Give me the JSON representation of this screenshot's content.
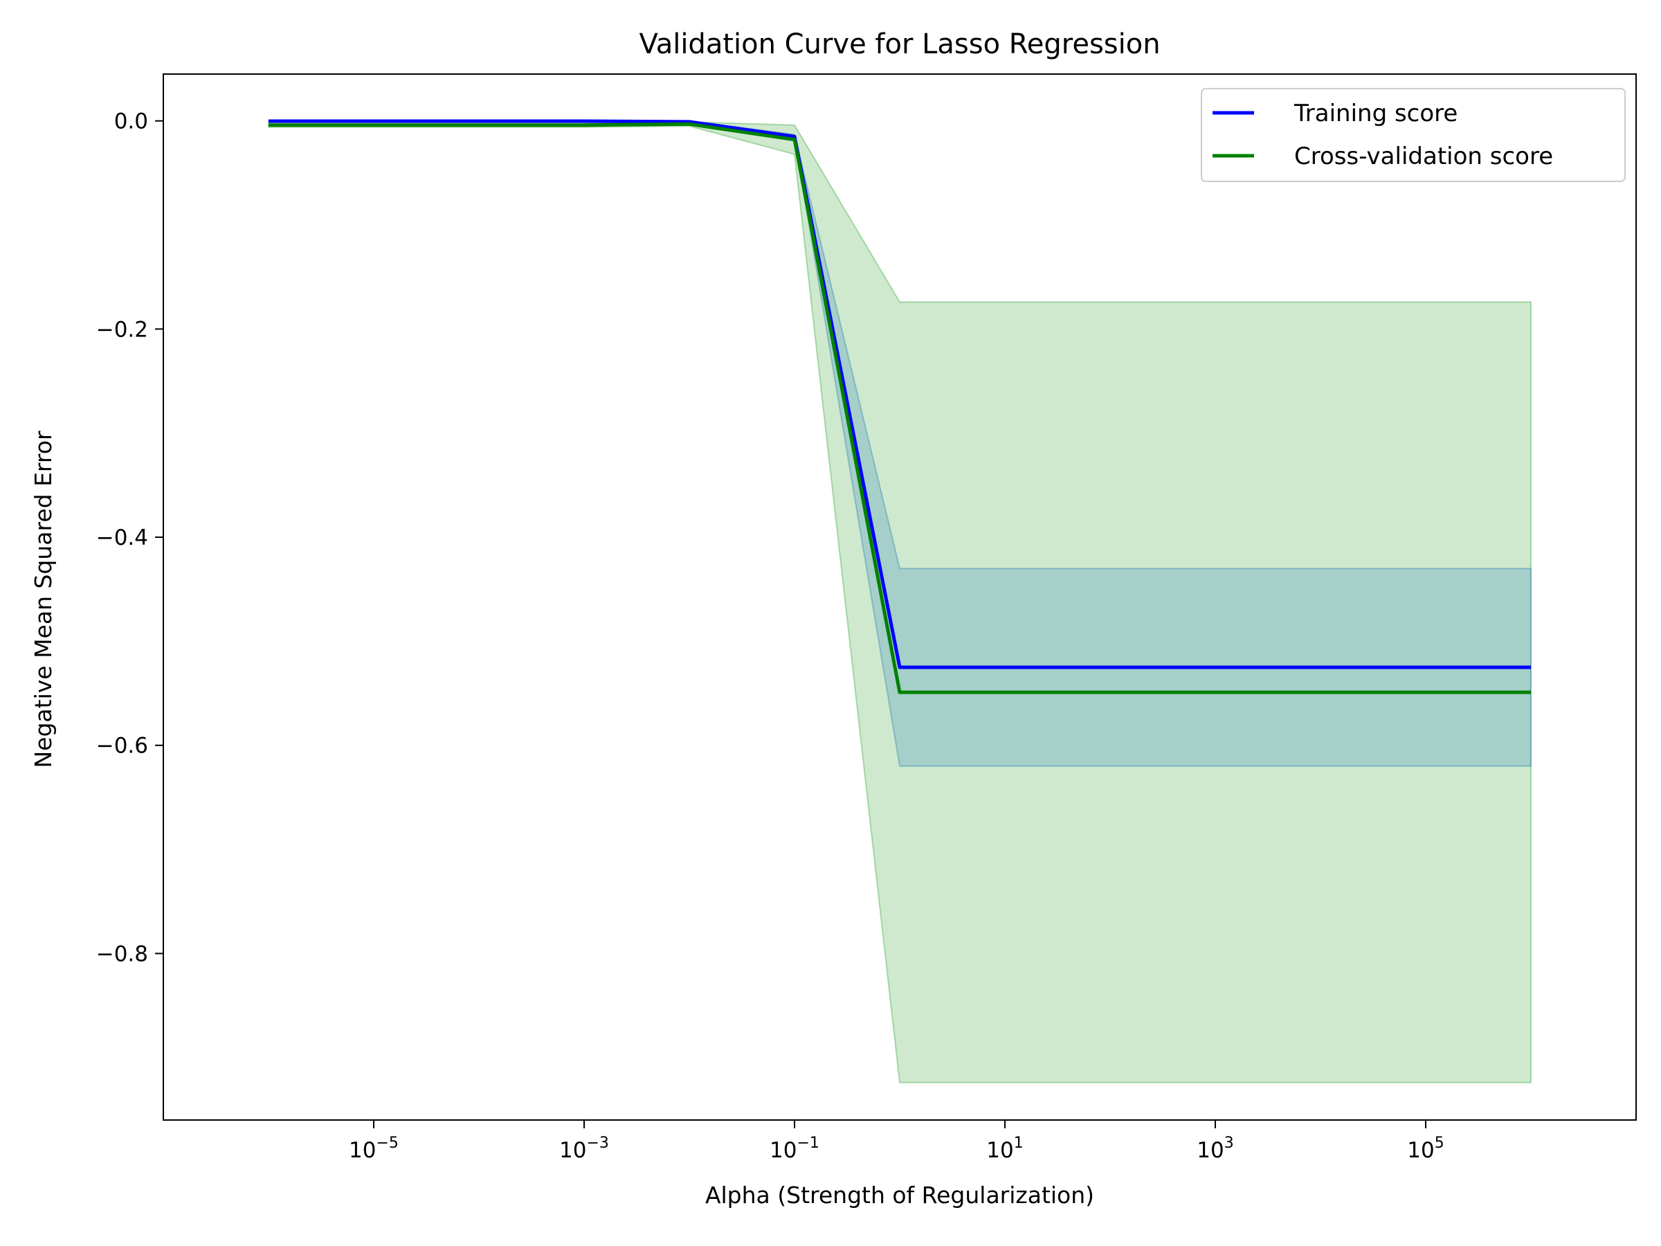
{
  "chart_data": {
    "type": "line",
    "title": "Validation Curve for Lasso Regression",
    "xlabel": "Alpha (Strength of Regularization)",
    "ylabel": "Negative Mean Squared Error",
    "xscale": "log",
    "xlim": [
      1e-07,
      10000000.0
    ],
    "ylim": [
      -0.96,
      0.045
    ],
    "x_ticks": [
      {
        "value": 1e-05,
        "base": "10",
        "exp": "−5"
      },
      {
        "value": 0.001,
        "base": "10",
        "exp": "−3"
      },
      {
        "value": 0.1,
        "base": "10",
        "exp": "−1"
      },
      {
        "value": 10.0,
        "base": "10",
        "exp": "1"
      },
      {
        "value": 1000.0,
        "base": "10",
        "exp": "3"
      },
      {
        "value": 100000.0,
        "base": "10",
        "exp": "5"
      }
    ],
    "y_ticks": [
      {
        "value": 0.0,
        "label": "0.0"
      },
      {
        "value": -0.2,
        "label": "−0.2"
      },
      {
        "value": -0.4,
        "label": "−0.4"
      },
      {
        "value": -0.6,
        "label": "−0.6"
      },
      {
        "value": -0.8,
        "label": "−0.8"
      }
    ],
    "x": [
      1e-06,
      1e-05,
      0.0001,
      0.001,
      0.01,
      0.1,
      1,
      10,
      100,
      1000,
      10000,
      100000,
      1000000
    ],
    "series": [
      {
        "name": "Training score",
        "color": "#0000ff",
        "band_color": "#1f77b4",
        "values": [
          -0.0002,
          -0.0002,
          -0.0002,
          -0.0002,
          -0.0008,
          -0.015,
          -0.525,
          -0.525,
          -0.525,
          -0.525,
          -0.525,
          -0.525,
          -0.525
        ],
        "band_upper": [
          0.0,
          0.0,
          0.0,
          0.0,
          0.0,
          -0.013,
          -0.43,
          -0.43,
          -0.43,
          -0.43,
          -0.43,
          -0.43,
          -0.43
        ],
        "band_lower": [
          -0.0005,
          -0.0005,
          -0.0005,
          -0.0005,
          -0.0015,
          -0.017,
          -0.62,
          -0.62,
          -0.62,
          -0.62,
          -0.62,
          -0.62,
          -0.62
        ]
      },
      {
        "name": "Cross-validation score",
        "color": "#008000",
        "band_color": "#2ca02c",
        "values": [
          -0.004,
          -0.004,
          -0.004,
          -0.004,
          -0.003,
          -0.018,
          -0.549,
          -0.549,
          -0.549,
          -0.549,
          -0.549,
          -0.549,
          -0.549
        ],
        "band_upper": [
          -0.002,
          -0.002,
          -0.002,
          -0.002,
          -0.001,
          -0.004,
          -0.174,
          -0.174,
          -0.174,
          -0.174,
          -0.174,
          -0.174,
          -0.174
        ],
        "band_lower": [
          -0.006,
          -0.006,
          -0.006,
          -0.006,
          -0.005,
          -0.032,
          -0.924,
          -0.924,
          -0.924,
          -0.924,
          -0.924,
          -0.924,
          -0.924
        ]
      }
    ],
    "legend_position": "upper right",
    "grid": false
  }
}
